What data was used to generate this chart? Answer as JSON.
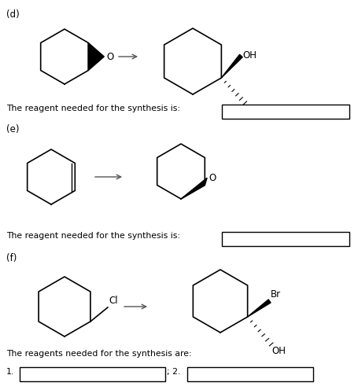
{
  "bg_color": "#ffffff",
  "fig_width": 4.55,
  "fig_height": 4.91,
  "dpi": 100,
  "sections": {
    "d_label": "(d)",
    "e_label": "(e)",
    "f_label": "(f)"
  },
  "text": {
    "reagent_d": "The reagent needed for the synthesis is:",
    "reagent_e": "The reagent needed for the synthesis is:",
    "reagent_f": "The reagents needed for the synthesis are:",
    "label1": "1.",
    "sep": "; 2."
  }
}
